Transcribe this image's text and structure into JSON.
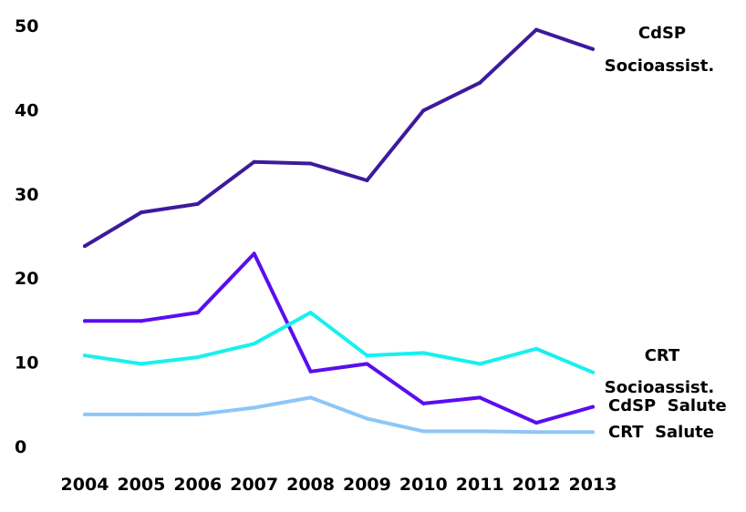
{
  "chart_data": {
    "type": "line",
    "title": "",
    "xlabel": "",
    "ylabel": "",
    "categories": [
      "2004",
      "2005",
      "2006",
      "2007",
      "2008",
      "2009",
      "2010",
      "2011",
      "2012",
      "2013"
    ],
    "ylim": [
      0,
      50
    ],
    "yticks": [
      "0",
      "10",
      "20",
      "30",
      "40",
      "50"
    ],
    "grid": false,
    "legend": "none (series labeled at line ends)",
    "series": [
      {
        "name": "CdSP Socioassist.",
        "label_lines": [
          "CdSP",
          "Socioassist."
        ],
        "color": "#3d1a9c",
        "values": [
          23.8,
          27.8,
          28.8,
          33.8,
          33.6,
          31.6,
          39.9,
          43.2,
          49.5,
          47.2
        ]
      },
      {
        "name": "CdSP Salute",
        "label_lines": [
          "CdSP  Salute"
        ],
        "color": "#5a0df0",
        "values": [
          14.9,
          14.9,
          15.9,
          22.9,
          8.9,
          9.8,
          5.1,
          5.8,
          2.8,
          4.7
        ]
      },
      {
        "name": "CRT Socioassist.",
        "label_lines": [
          "CRT",
          "Socioassist."
        ],
        "color": "#18f0f0",
        "values": [
          10.8,
          9.8,
          10.6,
          12.2,
          15.9,
          10.8,
          11.1,
          9.8,
          11.6,
          8.8
        ]
      },
      {
        "name": "CRT Salute",
        "label_lines": [
          "CRT  Salute"
        ],
        "color": "#8ec6f6",
        "values": [
          3.8,
          3.8,
          3.8,
          4.6,
          5.8,
          3.3,
          1.8,
          1.8,
          1.7,
          1.7
        ]
      }
    ]
  }
}
